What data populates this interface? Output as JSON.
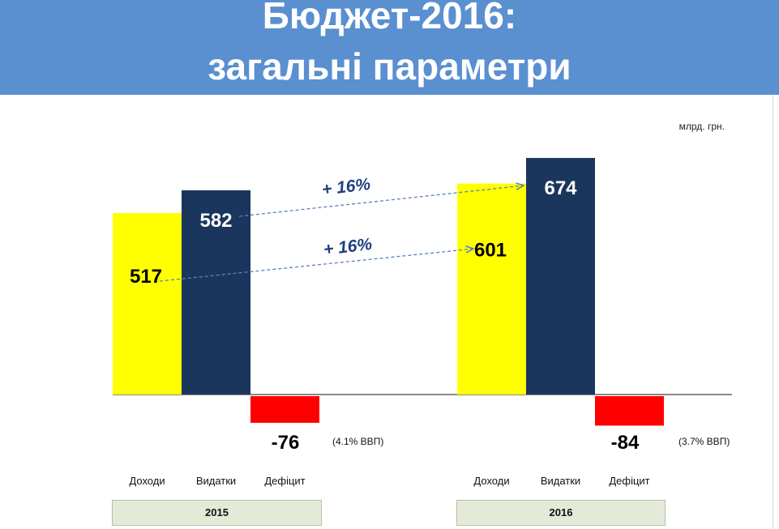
{
  "header": {
    "title_line1": "Бюджет-2016:",
    "title_line2": "загальні параметри",
    "background_color": "#5a8fd0"
  },
  "unit_label": "млрд. грн.",
  "chart_data": {
    "type": "bar",
    "title": "Бюджет-2016: загальні параметри",
    "unit": "млрд. грн.",
    "groups": [
      {
        "year": "2015",
        "bars": [
          {
            "category": "Доходи",
            "value": 517,
            "label": "517",
            "color": "#ffff00",
            "label_color": "#000000"
          },
          {
            "category": "Видатки",
            "value": 582,
            "label": "582",
            "color": "#1b365d",
            "label_color": "#ffffff"
          },
          {
            "category": "Дефіцит",
            "value": -76,
            "label": "-76",
            "color": "#ff0000",
            "label_color": "#000000",
            "note": "(4.1% ВВП)"
          }
        ]
      },
      {
        "year": "2016",
        "bars": [
          {
            "category": "Доходи",
            "value": 601,
            "label": "601",
            "color": "#ffff00",
            "label_color": "#000000"
          },
          {
            "category": "Видатки",
            "value": 674,
            "label": "674",
            "color": "#1b365d",
            "label_color": "#ffffff"
          },
          {
            "category": "Дефіцит",
            "value": -84,
            "label": "-84",
            "color": "#ff0000",
            "label_color": "#000000",
            "note": "(3.7% ВВП)"
          }
        ]
      }
    ],
    "annotations": [
      {
        "label": "+ 16%",
        "from": "2015 Видатки",
        "to": "2016 Видатки"
      },
      {
        "label": "+ 16%",
        "from": "2015 Доходи",
        "to": "2016 Доходи"
      }
    ],
    "grid": false,
    "legend": "none"
  }
}
